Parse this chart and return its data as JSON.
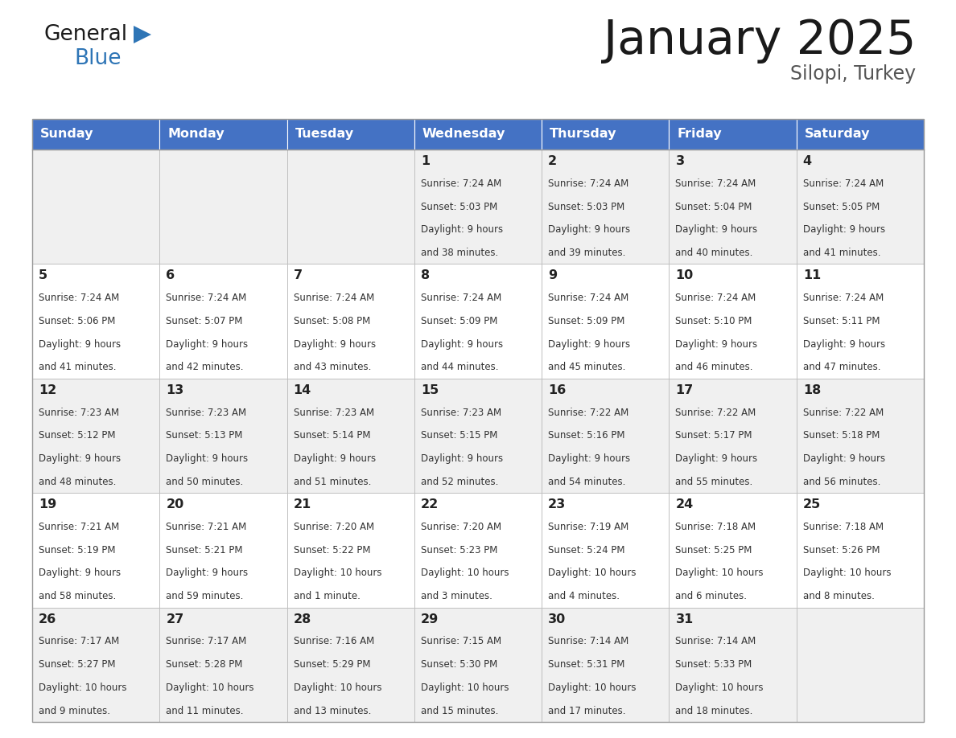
{
  "title": "January 2025",
  "subtitle": "Silopi, Turkey",
  "days_of_week": [
    "Sunday",
    "Monday",
    "Tuesday",
    "Wednesday",
    "Thursday",
    "Friday",
    "Saturday"
  ],
  "header_bg": "#4472C4",
  "header_text_color": "#FFFFFF",
  "cell_bg_odd": "#F0F0F0",
  "cell_bg_even": "#FFFFFF",
  "cell_border_color": "#BBBBBB",
  "text_color": "#333333",
  "day_number_color": "#222222",
  "title_color": "#1a1a1a",
  "subtitle_color": "#555555",
  "general_color": "#1a1a1a",
  "blue_color": "#2E75B6",
  "triangle_color": "#2E75B6",
  "calendar_data": [
    [
      null,
      null,
      null,
      {
        "day": 1,
        "sunrise": "7:24 AM",
        "sunset": "5:03 PM",
        "daylight_line1": "Daylight: 9 hours",
        "daylight_line2": "and 38 minutes."
      },
      {
        "day": 2,
        "sunrise": "7:24 AM",
        "sunset": "5:03 PM",
        "daylight_line1": "Daylight: 9 hours",
        "daylight_line2": "and 39 minutes."
      },
      {
        "day": 3,
        "sunrise": "7:24 AM",
        "sunset": "5:04 PM",
        "daylight_line1": "Daylight: 9 hours",
        "daylight_line2": "and 40 minutes."
      },
      {
        "day": 4,
        "sunrise": "7:24 AM",
        "sunset": "5:05 PM",
        "daylight_line1": "Daylight: 9 hours",
        "daylight_line2": "and 41 minutes."
      }
    ],
    [
      {
        "day": 5,
        "sunrise": "7:24 AM",
        "sunset": "5:06 PM",
        "daylight_line1": "Daylight: 9 hours",
        "daylight_line2": "and 41 minutes."
      },
      {
        "day": 6,
        "sunrise": "7:24 AM",
        "sunset": "5:07 PM",
        "daylight_line1": "Daylight: 9 hours",
        "daylight_line2": "and 42 minutes."
      },
      {
        "day": 7,
        "sunrise": "7:24 AM",
        "sunset": "5:08 PM",
        "daylight_line1": "Daylight: 9 hours",
        "daylight_line2": "and 43 minutes."
      },
      {
        "day": 8,
        "sunrise": "7:24 AM",
        "sunset": "5:09 PM",
        "daylight_line1": "Daylight: 9 hours",
        "daylight_line2": "and 44 minutes."
      },
      {
        "day": 9,
        "sunrise": "7:24 AM",
        "sunset": "5:09 PM",
        "daylight_line1": "Daylight: 9 hours",
        "daylight_line2": "and 45 minutes."
      },
      {
        "day": 10,
        "sunrise": "7:24 AM",
        "sunset": "5:10 PM",
        "daylight_line1": "Daylight: 9 hours",
        "daylight_line2": "and 46 minutes."
      },
      {
        "day": 11,
        "sunrise": "7:24 AM",
        "sunset": "5:11 PM",
        "daylight_line1": "Daylight: 9 hours",
        "daylight_line2": "and 47 minutes."
      }
    ],
    [
      {
        "day": 12,
        "sunrise": "7:23 AM",
        "sunset": "5:12 PM",
        "daylight_line1": "Daylight: 9 hours",
        "daylight_line2": "and 48 minutes."
      },
      {
        "day": 13,
        "sunrise": "7:23 AM",
        "sunset": "5:13 PM",
        "daylight_line1": "Daylight: 9 hours",
        "daylight_line2": "and 50 minutes."
      },
      {
        "day": 14,
        "sunrise": "7:23 AM",
        "sunset": "5:14 PM",
        "daylight_line1": "Daylight: 9 hours",
        "daylight_line2": "and 51 minutes."
      },
      {
        "day": 15,
        "sunrise": "7:23 AM",
        "sunset": "5:15 PM",
        "daylight_line1": "Daylight: 9 hours",
        "daylight_line2": "and 52 minutes."
      },
      {
        "day": 16,
        "sunrise": "7:22 AM",
        "sunset": "5:16 PM",
        "daylight_line1": "Daylight: 9 hours",
        "daylight_line2": "and 54 minutes."
      },
      {
        "day": 17,
        "sunrise": "7:22 AM",
        "sunset": "5:17 PM",
        "daylight_line1": "Daylight: 9 hours",
        "daylight_line2": "and 55 minutes."
      },
      {
        "day": 18,
        "sunrise": "7:22 AM",
        "sunset": "5:18 PM",
        "daylight_line1": "Daylight: 9 hours",
        "daylight_line2": "and 56 minutes."
      }
    ],
    [
      {
        "day": 19,
        "sunrise": "7:21 AM",
        "sunset": "5:19 PM",
        "daylight_line1": "Daylight: 9 hours",
        "daylight_line2": "and 58 minutes."
      },
      {
        "day": 20,
        "sunrise": "7:21 AM",
        "sunset": "5:21 PM",
        "daylight_line1": "Daylight: 9 hours",
        "daylight_line2": "and 59 minutes."
      },
      {
        "day": 21,
        "sunrise": "7:20 AM",
        "sunset": "5:22 PM",
        "daylight_line1": "Daylight: 10 hours",
        "daylight_line2": "and 1 minute."
      },
      {
        "day": 22,
        "sunrise": "7:20 AM",
        "sunset": "5:23 PM",
        "daylight_line1": "Daylight: 10 hours",
        "daylight_line2": "and 3 minutes."
      },
      {
        "day": 23,
        "sunrise": "7:19 AM",
        "sunset": "5:24 PM",
        "daylight_line1": "Daylight: 10 hours",
        "daylight_line2": "and 4 minutes."
      },
      {
        "day": 24,
        "sunrise": "7:18 AM",
        "sunset": "5:25 PM",
        "daylight_line1": "Daylight: 10 hours",
        "daylight_line2": "and 6 minutes."
      },
      {
        "day": 25,
        "sunrise": "7:18 AM",
        "sunset": "5:26 PM",
        "daylight_line1": "Daylight: 10 hours",
        "daylight_line2": "and 8 minutes."
      }
    ],
    [
      {
        "day": 26,
        "sunrise": "7:17 AM",
        "sunset": "5:27 PM",
        "daylight_line1": "Daylight: 10 hours",
        "daylight_line2": "and 9 minutes."
      },
      {
        "day": 27,
        "sunrise": "7:17 AM",
        "sunset": "5:28 PM",
        "daylight_line1": "Daylight: 10 hours",
        "daylight_line2": "and 11 minutes."
      },
      {
        "day": 28,
        "sunrise": "7:16 AM",
        "sunset": "5:29 PM",
        "daylight_line1": "Daylight: 10 hours",
        "daylight_line2": "and 13 minutes."
      },
      {
        "day": 29,
        "sunrise": "7:15 AM",
        "sunset": "5:30 PM",
        "daylight_line1": "Daylight: 10 hours",
        "daylight_line2": "and 15 minutes."
      },
      {
        "day": 30,
        "sunrise": "7:14 AM",
        "sunset": "5:31 PM",
        "daylight_line1": "Daylight: 10 hours",
        "daylight_line2": "and 17 minutes."
      },
      {
        "day": 31,
        "sunrise": "7:14 AM",
        "sunset": "5:33 PM",
        "daylight_line1": "Daylight: 10 hours",
        "daylight_line2": "and 18 minutes."
      },
      null
    ]
  ]
}
